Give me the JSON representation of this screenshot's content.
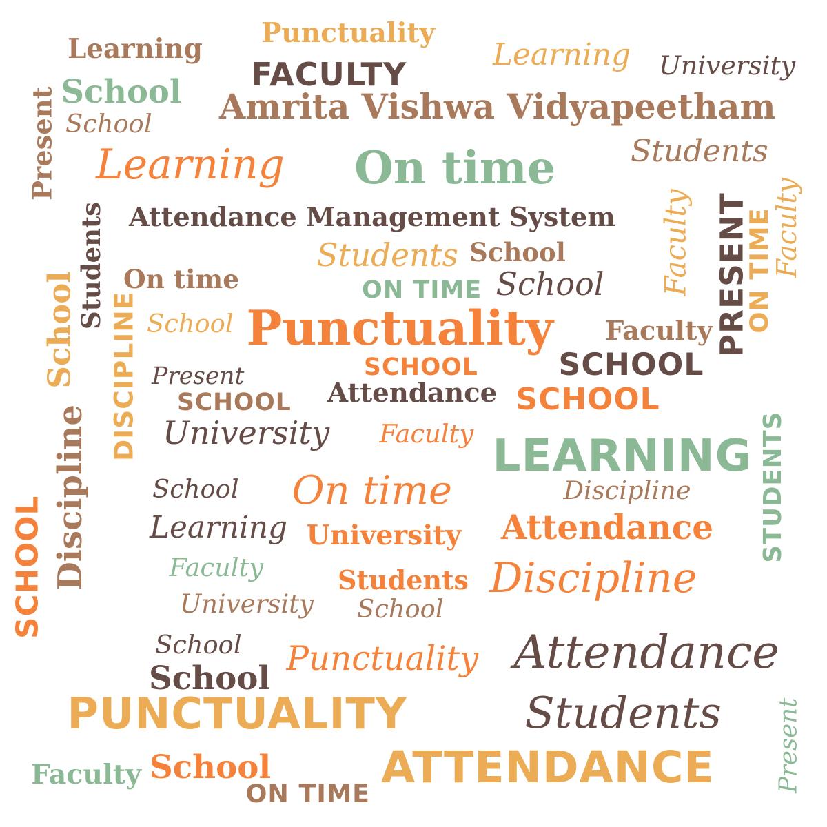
{
  "palette": {
    "orange": "#f4823b",
    "light_orange": "#ebac55",
    "brown": "#a8795a",
    "dark_brown": "#654c46",
    "sage": "#8bb996"
  },
  "words": [
    {
      "text": "Punctuality",
      "style": "slab",
      "color": "light_orange"
    },
    {
      "text": "Learning",
      "style": "slab",
      "color": "brown"
    },
    {
      "text": "Learning",
      "style": "hand",
      "color": "light_orange"
    },
    {
      "text": "University",
      "style": "hand",
      "color": "dark_brown"
    },
    {
      "text": "FACULTY",
      "style": "sans",
      "color": "dark_brown"
    },
    {
      "text": "School",
      "style": "slab",
      "color": "sage"
    },
    {
      "text": "Amrita Vishwa Vidyapeetham",
      "style": "slab",
      "color": "brown"
    },
    {
      "text": "Present",
      "style": "slab",
      "color": "brown"
    },
    {
      "text": "School",
      "style": "hand",
      "color": "brown"
    },
    {
      "text": "Students",
      "style": "hand",
      "color": "brown"
    },
    {
      "text": "Learning",
      "style": "hand",
      "color": "orange"
    },
    {
      "text": "On time",
      "style": "slab",
      "color": "sage"
    },
    {
      "text": "Students",
      "style": "slab",
      "color": "dark_brown"
    },
    {
      "text": "Attendance Management System",
      "style": "slab",
      "color": "dark_brown"
    },
    {
      "text": "Faculty",
      "style": "hand",
      "color": "light_orange"
    },
    {
      "text": "PRESENT",
      "style": "sans",
      "color": "dark_brown"
    },
    {
      "text": "ON TIME",
      "style": "sans",
      "color": "light_orange"
    },
    {
      "text": "Faculty",
      "style": "hand",
      "color": "light_orange"
    },
    {
      "text": "Students",
      "style": "hand",
      "color": "light_orange"
    },
    {
      "text": "School",
      "style": "slab",
      "color": "brown"
    },
    {
      "text": "On time",
      "style": "slab",
      "color": "brown"
    },
    {
      "text": "ON TIME",
      "style": "sans",
      "color": "sage"
    },
    {
      "text": "School",
      "style": "hand",
      "color": "dark_brown"
    },
    {
      "text": "School",
      "style": "slab",
      "color": "light_orange"
    },
    {
      "text": "DISCIPLINE",
      "style": "sans",
      "color": "light_orange"
    },
    {
      "text": "School",
      "style": "hand",
      "color": "light_orange"
    },
    {
      "text": "Punctuality",
      "style": "slab",
      "color": "orange"
    },
    {
      "text": "Faculty",
      "style": "slab",
      "color": "brown"
    },
    {
      "text": "SCHOOL",
      "style": "sans",
      "color": "orange"
    },
    {
      "text": "SCHOOL",
      "style": "sans",
      "color": "dark_brown"
    },
    {
      "text": "Present",
      "style": "hand",
      "color": "dark_brown"
    },
    {
      "text": "Attendance",
      "style": "slab",
      "color": "dark_brown"
    },
    {
      "text": "SCHOOL",
      "style": "sans",
      "color": "brown"
    },
    {
      "text": "SCHOOL",
      "style": "sans",
      "color": "orange"
    },
    {
      "text": "University",
      "style": "hand",
      "color": "dark_brown"
    },
    {
      "text": "Faculty",
      "style": "hand",
      "color": "orange"
    },
    {
      "text": "LEARNING",
      "style": "sans",
      "color": "sage"
    },
    {
      "text": "Discipline",
      "style": "slab",
      "color": "brown"
    },
    {
      "text": "STUDENTS",
      "style": "sans",
      "color": "sage"
    },
    {
      "text": "School",
      "style": "hand",
      "color": "dark_brown"
    },
    {
      "text": "On time",
      "style": "hand",
      "color": "orange"
    },
    {
      "text": "Discipline",
      "style": "hand",
      "color": "brown"
    },
    {
      "text": "SCHOOL",
      "style": "sans",
      "color": "orange"
    },
    {
      "text": "Attendance",
      "style": "slab",
      "color": "orange"
    },
    {
      "text": "Learning",
      "style": "hand",
      "color": "dark_brown"
    },
    {
      "text": "University",
      "style": "slab",
      "color": "orange"
    },
    {
      "text": "Faculty",
      "style": "hand",
      "color": "sage"
    },
    {
      "text": "Students",
      "style": "slab",
      "color": "orange"
    },
    {
      "text": "Discipline",
      "style": "hand",
      "color": "orange"
    },
    {
      "text": "University",
      "style": "hand",
      "color": "brown"
    },
    {
      "text": "School",
      "style": "hand",
      "color": "brown"
    },
    {
      "text": "School",
      "style": "hand",
      "color": "dark_brown"
    },
    {
      "text": "Punctuality",
      "style": "hand",
      "color": "orange"
    },
    {
      "text": "Attendance",
      "style": "hand",
      "color": "dark_brown"
    },
    {
      "text": "School",
      "style": "slab",
      "color": "dark_brown"
    },
    {
      "text": "PUNCTUALITY",
      "style": "sans",
      "color": "light_orange"
    },
    {
      "text": "Students",
      "style": "hand",
      "color": "dark_brown"
    },
    {
      "text": "Present",
      "style": "hand",
      "color": "sage"
    },
    {
      "text": "Faculty",
      "style": "slab",
      "color": "sage"
    },
    {
      "text": "School",
      "style": "slab",
      "color": "orange"
    },
    {
      "text": "ATTENDANCE",
      "style": "sans",
      "color": "light_orange"
    },
    {
      "text": "ON TIME",
      "style": "sans",
      "color": "brown"
    }
  ]
}
